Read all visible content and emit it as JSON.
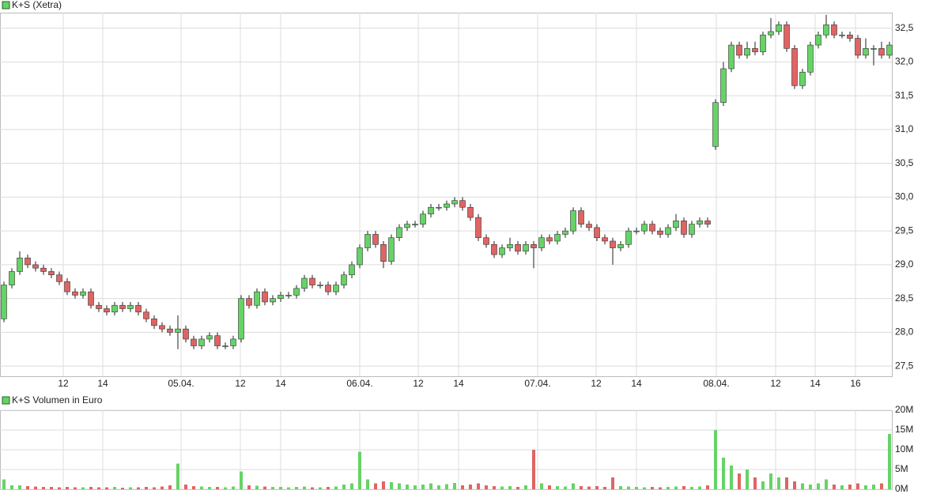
{
  "chart_data": [
    {
      "type": "candlestick",
      "title": "K+S (Xetra)",
      "open": [
        28.2,
        28.7,
        28.9,
        29.1,
        29.0,
        28.95,
        28.9,
        28.85,
        28.75,
        28.6,
        28.55,
        28.6,
        28.4,
        28.35,
        28.3,
        28.4,
        28.35,
        28.4,
        28.3,
        28.2,
        28.1,
        28.05,
        28.0,
        28.05,
        27.9,
        27.8,
        27.9,
        27.95,
        27.8,
        27.8,
        27.9,
        28.5,
        28.4,
        28.6,
        28.45,
        28.5,
        28.55,
        28.55,
        28.65,
        28.8,
        28.7,
        28.7,
        28.6,
        28.7,
        28.85,
        29.0,
        29.25,
        29.45,
        29.3,
        29.05,
        29.4,
        29.55,
        29.6,
        29.6,
        29.75,
        29.85,
        29.85,
        29.9,
        29.95,
        29.85,
        29.7,
        29.4,
        29.3,
        29.15,
        29.25,
        29.3,
        29.2,
        29.3,
        29.25,
        29.4,
        29.35,
        29.45,
        29.5,
        29.8,
        29.6,
        29.55,
        29.4,
        29.35,
        29.25,
        29.3,
        29.5,
        29.5,
        29.6,
        29.5,
        29.45,
        29.55,
        29.65,
        29.45,
        29.6,
        29.65,
        30.75,
        31.4,
        31.9,
        32.25,
        32.1,
        32.2,
        32.15,
        32.4,
        32.45,
        32.55,
        32.2,
        31.65,
        31.85,
        32.25,
        32.4,
        32.55,
        32.4,
        32.4,
        32.35,
        32.1,
        32.2,
        32.2,
        32.1
      ],
      "high": [
        28.75,
        28.95,
        29.2,
        29.15,
        29.05,
        29.0,
        28.95,
        28.9,
        28.8,
        28.65,
        28.65,
        28.65,
        28.45,
        28.4,
        28.45,
        28.45,
        28.45,
        28.45,
        28.35,
        28.25,
        28.15,
        28.1,
        28.25,
        28.1,
        27.95,
        27.95,
        28.0,
        28.0,
        27.85,
        27.95,
        28.55,
        28.55,
        28.65,
        28.65,
        28.55,
        28.6,
        28.6,
        28.7,
        28.85,
        28.85,
        28.75,
        28.75,
        28.75,
        28.9,
        29.05,
        29.3,
        29.5,
        29.5,
        29.35,
        29.45,
        29.6,
        29.65,
        29.65,
        29.8,
        29.9,
        29.9,
        29.95,
        30.0,
        30.0,
        29.9,
        29.75,
        29.45,
        29.35,
        29.3,
        29.4,
        29.35,
        29.35,
        29.35,
        29.45,
        29.45,
        29.5,
        29.55,
        29.85,
        29.85,
        29.65,
        29.6,
        29.45,
        29.4,
        29.35,
        29.55,
        29.55,
        29.65,
        29.65,
        29.55,
        29.6,
        29.75,
        29.7,
        29.65,
        29.7,
        29.7,
        31.45,
        32.0,
        32.3,
        32.3,
        32.3,
        32.3,
        32.45,
        32.65,
        32.6,
        32.6,
        32.25,
        31.9,
        32.3,
        32.45,
        32.7,
        32.6,
        32.45,
        32.45,
        32.4,
        32.35,
        32.25,
        32.3,
        32.3
      ],
      "low": [
        28.15,
        28.65,
        28.85,
        28.95,
        28.9,
        28.85,
        28.8,
        28.7,
        28.55,
        28.5,
        28.5,
        28.35,
        28.3,
        28.25,
        28.25,
        28.3,
        28.3,
        28.25,
        28.15,
        28.05,
        28.0,
        27.95,
        27.75,
        27.85,
        27.75,
        27.75,
        27.85,
        27.75,
        27.75,
        27.75,
        27.85,
        28.35,
        28.35,
        28.4,
        28.4,
        28.45,
        28.5,
        28.5,
        28.6,
        28.65,
        28.65,
        28.55,
        28.55,
        28.65,
        28.8,
        28.95,
        29.2,
        29.25,
        28.95,
        29.0,
        29.35,
        29.5,
        29.55,
        29.55,
        29.7,
        29.8,
        29.8,
        29.85,
        29.8,
        29.65,
        29.35,
        29.25,
        29.1,
        29.1,
        29.2,
        29.15,
        29.15,
        28.95,
        29.2,
        29.3,
        29.3,
        29.4,
        29.45,
        29.55,
        29.5,
        29.35,
        29.3,
        29.0,
        29.2,
        29.25,
        29.45,
        29.45,
        29.45,
        29.4,
        29.4,
        29.5,
        29.4,
        29.4,
        29.55,
        29.55,
        30.7,
        31.35,
        31.85,
        32.05,
        32.05,
        32.1,
        32.1,
        32.35,
        32.4,
        32.15,
        31.6,
        31.6,
        31.8,
        32.2,
        32.35,
        32.35,
        32.35,
        32.3,
        32.05,
        32.05,
        31.95,
        32.05,
        32.05
      ],
      "close": [
        28.7,
        28.9,
        29.1,
        29.0,
        28.95,
        28.9,
        28.85,
        28.75,
        28.6,
        28.55,
        28.6,
        28.4,
        28.35,
        28.3,
        28.4,
        28.35,
        28.4,
        28.3,
        28.2,
        28.1,
        28.05,
        28.0,
        28.05,
        27.9,
        27.8,
        27.9,
        27.95,
        27.8,
        27.8,
        27.9,
        28.5,
        28.4,
        28.6,
        28.45,
        28.5,
        28.55,
        28.55,
        28.65,
        28.8,
        28.7,
        28.7,
        28.6,
        28.7,
        28.85,
        29.0,
        29.25,
        29.45,
        29.3,
        29.05,
        29.4,
        29.55,
        29.6,
        29.6,
        29.75,
        29.85,
        29.85,
        29.9,
        29.95,
        29.85,
        29.7,
        29.4,
        29.3,
        29.15,
        29.25,
        29.3,
        29.2,
        29.3,
        29.25,
        29.4,
        29.35,
        29.45,
        29.5,
        29.8,
        29.6,
        29.55,
        29.4,
        29.35,
        29.25,
        29.3,
        29.5,
        29.5,
        29.6,
        29.5,
        29.45,
        29.55,
        29.65,
        29.45,
        29.6,
        29.65,
        29.6,
        31.4,
        31.9,
        32.25,
        32.1,
        32.2,
        32.15,
        32.4,
        32.45,
        32.55,
        32.2,
        31.65,
        31.85,
        32.25,
        32.4,
        32.55,
        32.4,
        32.4,
        32.35,
        32.1,
        32.2,
        32.2,
        32.1,
        32.25
      ],
      "up_color": "#66d366",
      "down_color": "#e06464",
      "xlim": [
        -0.5,
        112.3
      ],
      "xticks": [
        {
          "value": 7.5,
          "label": "12"
        },
        {
          "value": 12.5,
          "label": "14"
        },
        {
          "value": 22.4,
          "label": "05.04."
        },
        {
          "value": 29.9,
          "label": "12"
        },
        {
          "value": 35,
          "label": "14"
        },
        {
          "value": 45,
          "label": "06.04."
        },
        {
          "value": 52.4,
          "label": "12"
        },
        {
          "value": 57.5,
          "label": "14"
        },
        {
          "value": 67.5,
          "label": "07.04."
        },
        {
          "value": 74.9,
          "label": "12"
        },
        {
          "value": 80,
          "label": "14"
        },
        {
          "value": 90.1,
          "label": "08.04."
        },
        {
          "value": 97.6,
          "label": "12"
        },
        {
          "value": 102.6,
          "label": "14"
        },
        {
          "value": 107.7,
          "label": "16"
        }
      ],
      "ylim": [
        27.35,
        32.73
      ],
      "yticks": [
        {
          "value": 27.5,
          "label": "27,5"
        },
        {
          "value": 28,
          "label": "28,0"
        },
        {
          "value": 28.5,
          "label": "28,5"
        },
        {
          "value": 29,
          "label": "29,0"
        },
        {
          "value": 29.5,
          "label": "29,5"
        },
        {
          "value": 30,
          "label": "30,0"
        },
        {
          "value": 30.5,
          "label": "30,5"
        },
        {
          "value": 31,
          "label": "31,0"
        },
        {
          "value": 31.5,
          "label": "31,5"
        },
        {
          "value": 32,
          "label": "32,0"
        },
        {
          "value": 32.5,
          "label": "32,5"
        }
      ],
      "grid": true
    },
    {
      "type": "bar",
      "title": "K+S Volumen in Euro",
      "values": [
        2.5,
        1,
        1,
        0.8,
        0.7,
        0.6,
        0.6,
        0.5,
        0.6,
        0.5,
        0.5,
        0.6,
        0.5,
        0.5,
        0.6,
        0.4,
        0.5,
        0.5,
        0.6,
        0.5,
        0.7,
        1,
        6.5,
        1.2,
        0.8,
        0.7,
        0.6,
        0.6,
        0.5,
        0.7,
        4.5,
        1,
        0.9,
        0.7,
        0.6,
        0.6,
        0.5,
        0.6,
        0.7,
        0.5,
        0.5,
        0.6,
        0.7,
        1.2,
        1.5,
        9.5,
        2.5,
        1.5,
        2,
        1.8,
        1.5,
        1.2,
        1,
        1.2,
        1.5,
        1,
        1.3,
        1.6,
        1,
        1.2,
        1.5,
        1,
        0.8,
        0.7,
        0.8,
        0.6,
        1,
        10,
        1.5,
        1,
        0.8,
        0.7,
        1.5,
        0.8,
        0.7,
        0.8,
        0.6,
        3,
        0.8,
        0.7,
        0.6,
        0.5,
        0.6,
        0.5,
        0.6,
        0.7,
        0.8,
        0.6,
        0.7,
        1,
        15,
        8,
        6,
        4,
        5,
        3,
        2,
        4,
        3,
        3,
        2,
        1.5,
        1.2,
        1.5,
        2.5,
        1.2,
        1,
        1.2,
        1.5,
        1,
        1.2,
        1.5,
        14
      ],
      "ylim": [
        0,
        20
      ],
      "yticks": [
        {
          "value": 0,
          "label": "0M"
        },
        {
          "value": 5,
          "label": "5M"
        },
        {
          "value": 10,
          "label": "10M"
        },
        {
          "value": 15,
          "label": "15M"
        },
        {
          "value": 20,
          "label": "20M"
        }
      ],
      "grid": true
    }
  ]
}
